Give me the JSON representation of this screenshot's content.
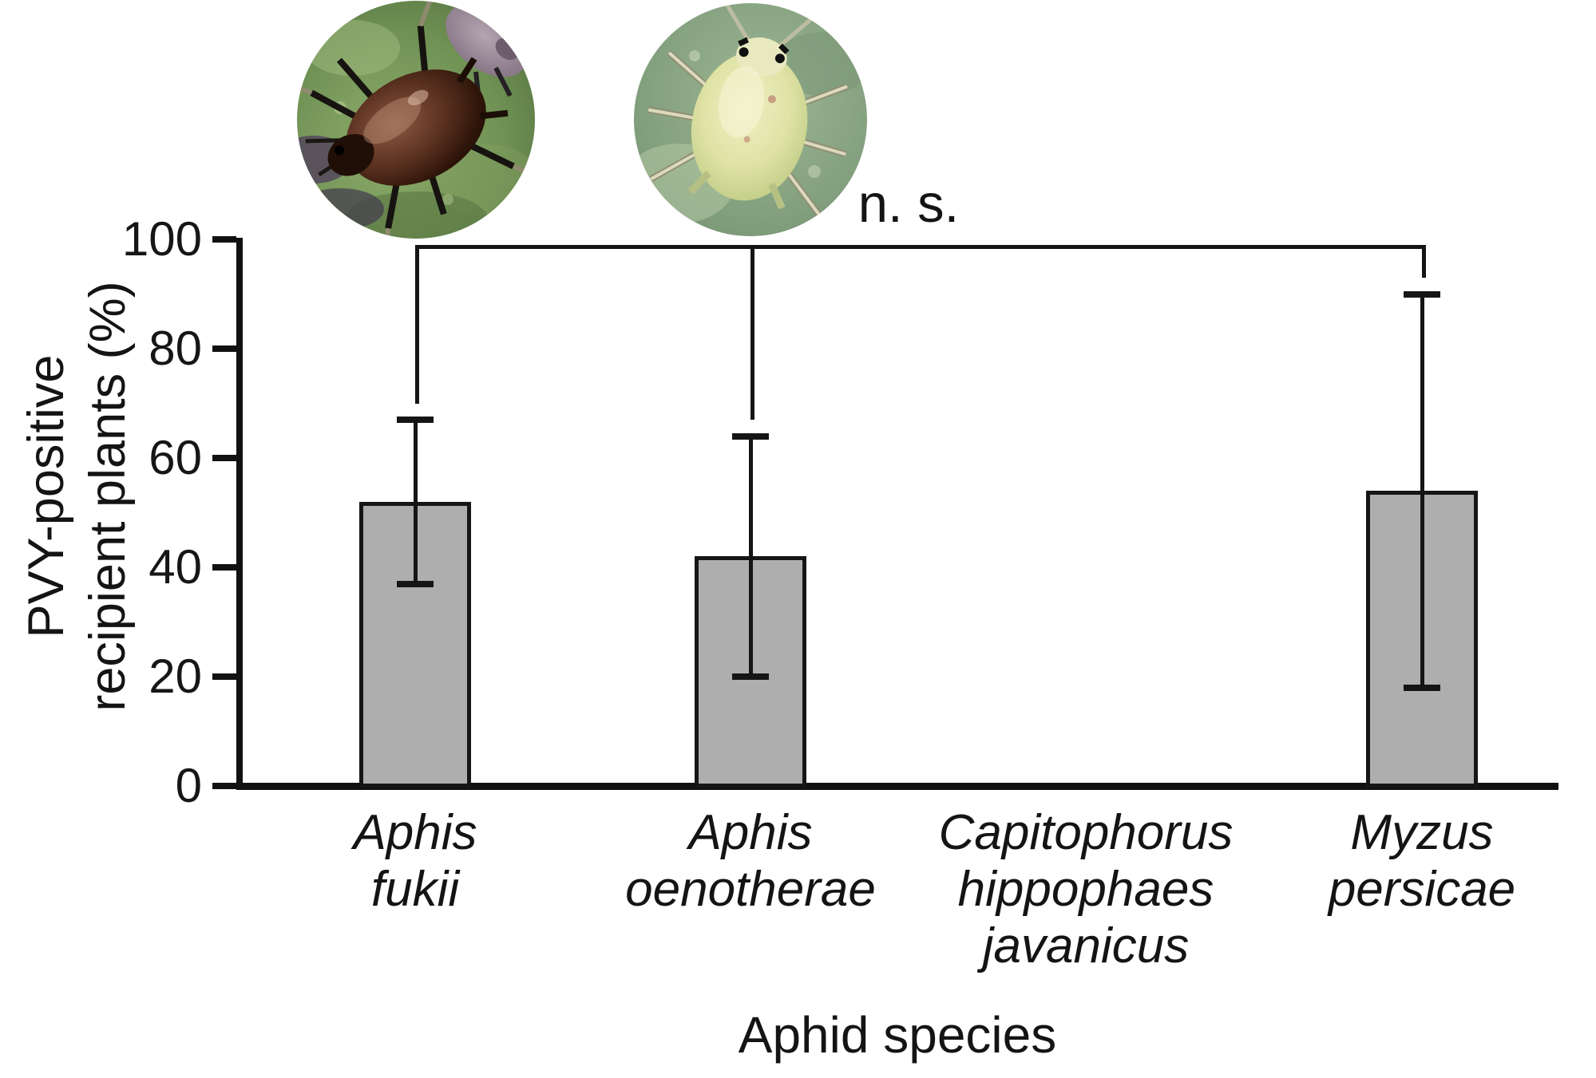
{
  "figure": {
    "background_color": "#ffffff",
    "ylabel_line1": "PVY-positive",
    "ylabel_line2": "recipient plants (%)"
  },
  "chart_data": {
    "type": "bar",
    "title": "",
    "xlabel": "Aphid species",
    "ylabel": "PVY-positive recipient plants (%)",
    "ylim": [
      0,
      100
    ],
    "yticks": [
      0,
      20,
      40,
      60,
      80,
      100
    ],
    "grid": false,
    "legend": "none",
    "bar_fill_color": "#aeaeae",
    "bar_edge_color": "#161616",
    "categories": [
      {
        "label_lines": [
          "Aphis",
          "fukii"
        ]
      },
      {
        "label_lines": [
          "Aphis",
          "oenotherae"
        ]
      },
      {
        "label_lines": [
          "Capitophorus",
          "hippophaes",
          "javanicus"
        ]
      },
      {
        "label_lines": [
          "Myzus",
          "persicae"
        ]
      }
    ],
    "values": [
      52,
      42,
      0,
      54
    ],
    "error_low": [
      37,
      20,
      null,
      18
    ],
    "error_high": [
      67,
      64,
      null,
      90
    ],
    "bar_present": [
      true,
      true,
      false,
      true
    ],
    "significance": {
      "label": "n. s.",
      "bracket_top_value": 99,
      "connects_category_indices": [
        0,
        1,
        3
      ],
      "drop_end_values": [
        70,
        67,
        93
      ]
    }
  },
  "photos": [
    {
      "name": "aphis-fukii-photo",
      "subject": "dark brown aphid on green leaf",
      "over_category_index": 0
    },
    {
      "name": "aphis-oenotherae-photo",
      "subject": "pale yellow-green aphid on green leaf",
      "over_category_index": 1
    }
  ]
}
